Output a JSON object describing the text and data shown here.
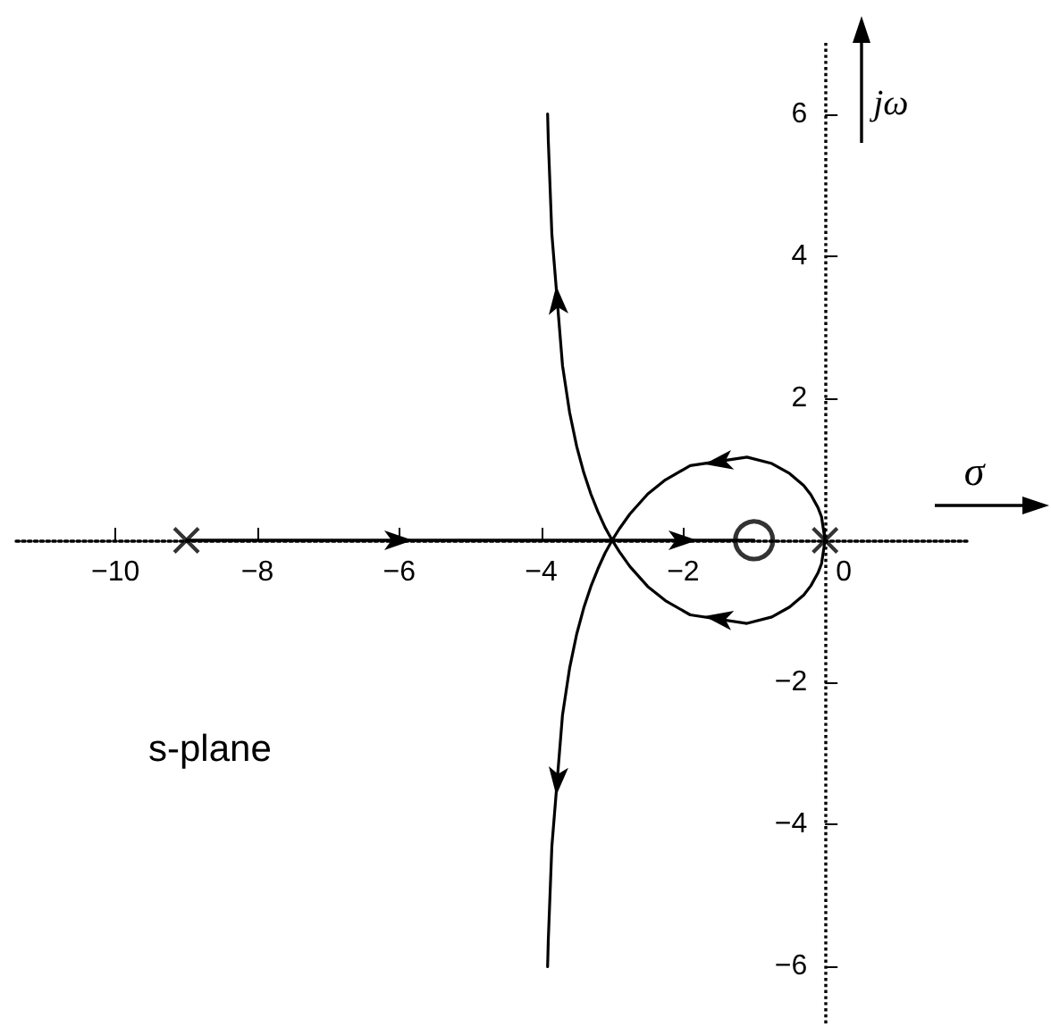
{
  "chart_data": {
    "type": "line",
    "xlabel": "σ",
    "ylabel": "jω",
    "annotations": [
      "s-plane"
    ],
    "xlim": [
      -11.4,
      2
    ],
    "ylim": [
      -6.8,
      7
    ],
    "xticks": [
      {
        "value": -10,
        "label": "−10"
      },
      {
        "value": -8,
        "label": "−8"
      },
      {
        "value": -6,
        "label": "−6"
      },
      {
        "value": -4,
        "label": "−4"
      },
      {
        "value": -2,
        "label": "−2"
      },
      0
    ],
    "yticks": [
      {
        "value": -6,
        "label": "−6"
      },
      {
        "value": -4,
        "label": "−4"
      },
      {
        "value": -2,
        "label": "−2"
      },
      2,
      4,
      6
    ],
    "ref_lines": [
      {
        "axis": "x",
        "value": 0,
        "color": "#000000",
        "line_style": "dotted"
      }
    ],
    "grid": false,
    "line_style": "solid",
    "marker": "none",
    "series": [
      {
        "color": "#000000",
        "x": [
          -9,
          -3,
          -3.1,
          -3.2,
          -3.3,
          -3.4,
          -3.5,
          -3.6,
          -3.7,
          -3.85,
          -3.9,
          -3.91
        ],
        "values": [
          0,
          0,
          0.18,
          0.4,
          0.65,
          0.95,
          1.32,
          1.8,
          2.46,
          4.31,
          5.62,
          6
        ]
      },
      {
        "color": "#000000",
        "x": [
          0,
          -0.05,
          -0.1,
          -0.2,
          -0.3,
          -0.5,
          -0.75,
          -1.1,
          -1.9,
          -2.25,
          -2.5,
          -2.75,
          -2.9,
          -3,
          -1
        ],
        "values": [
          0,
          0.33,
          0.46,
          0.64,
          0.77,
          0.94,
          1.08,
          1.17,
          1.05,
          0.85,
          0.65,
          0.37,
          0.16,
          0,
          0
        ]
      },
      {
        "color": "#000000",
        "x": [
          0,
          -0.05,
          -0.1,
          -0.2,
          -0.3,
          -0.5,
          -0.75,
          -1.1,
          -1.9,
          -2.25,
          -2.5,
          -2.75,
          -2.9,
          -3,
          -3.1,
          -3.2,
          -3.3,
          -3.4,
          -3.5,
          -3.6,
          -3.7,
          -3.85,
          -3.9,
          -3.91
        ],
        "values": [
          0,
          -0.33,
          -0.46,
          -0.64,
          -0.77,
          -0.94,
          -1.08,
          -1.17,
          -1.05,
          -0.85,
          -0.65,
          -0.37,
          -0.16,
          0,
          -0.18,
          -0.4,
          -0.65,
          -0.95,
          -1.32,
          -1.8,
          -2.46,
          -4.31,
          -5.62,
          -6
        ]
      },
      {
        "type": "scatter",
        "color": "#000000",
        "marker": "cross",
        "x": [
          -9,
          0
        ],
        "values": [
          0,
          0
        ]
      },
      {
        "type": "scatter",
        "color": "#000000",
        "marker": "circle",
        "x": [
          -1
        ],
        "values": [
          0
        ]
      }
    ]
  }
}
